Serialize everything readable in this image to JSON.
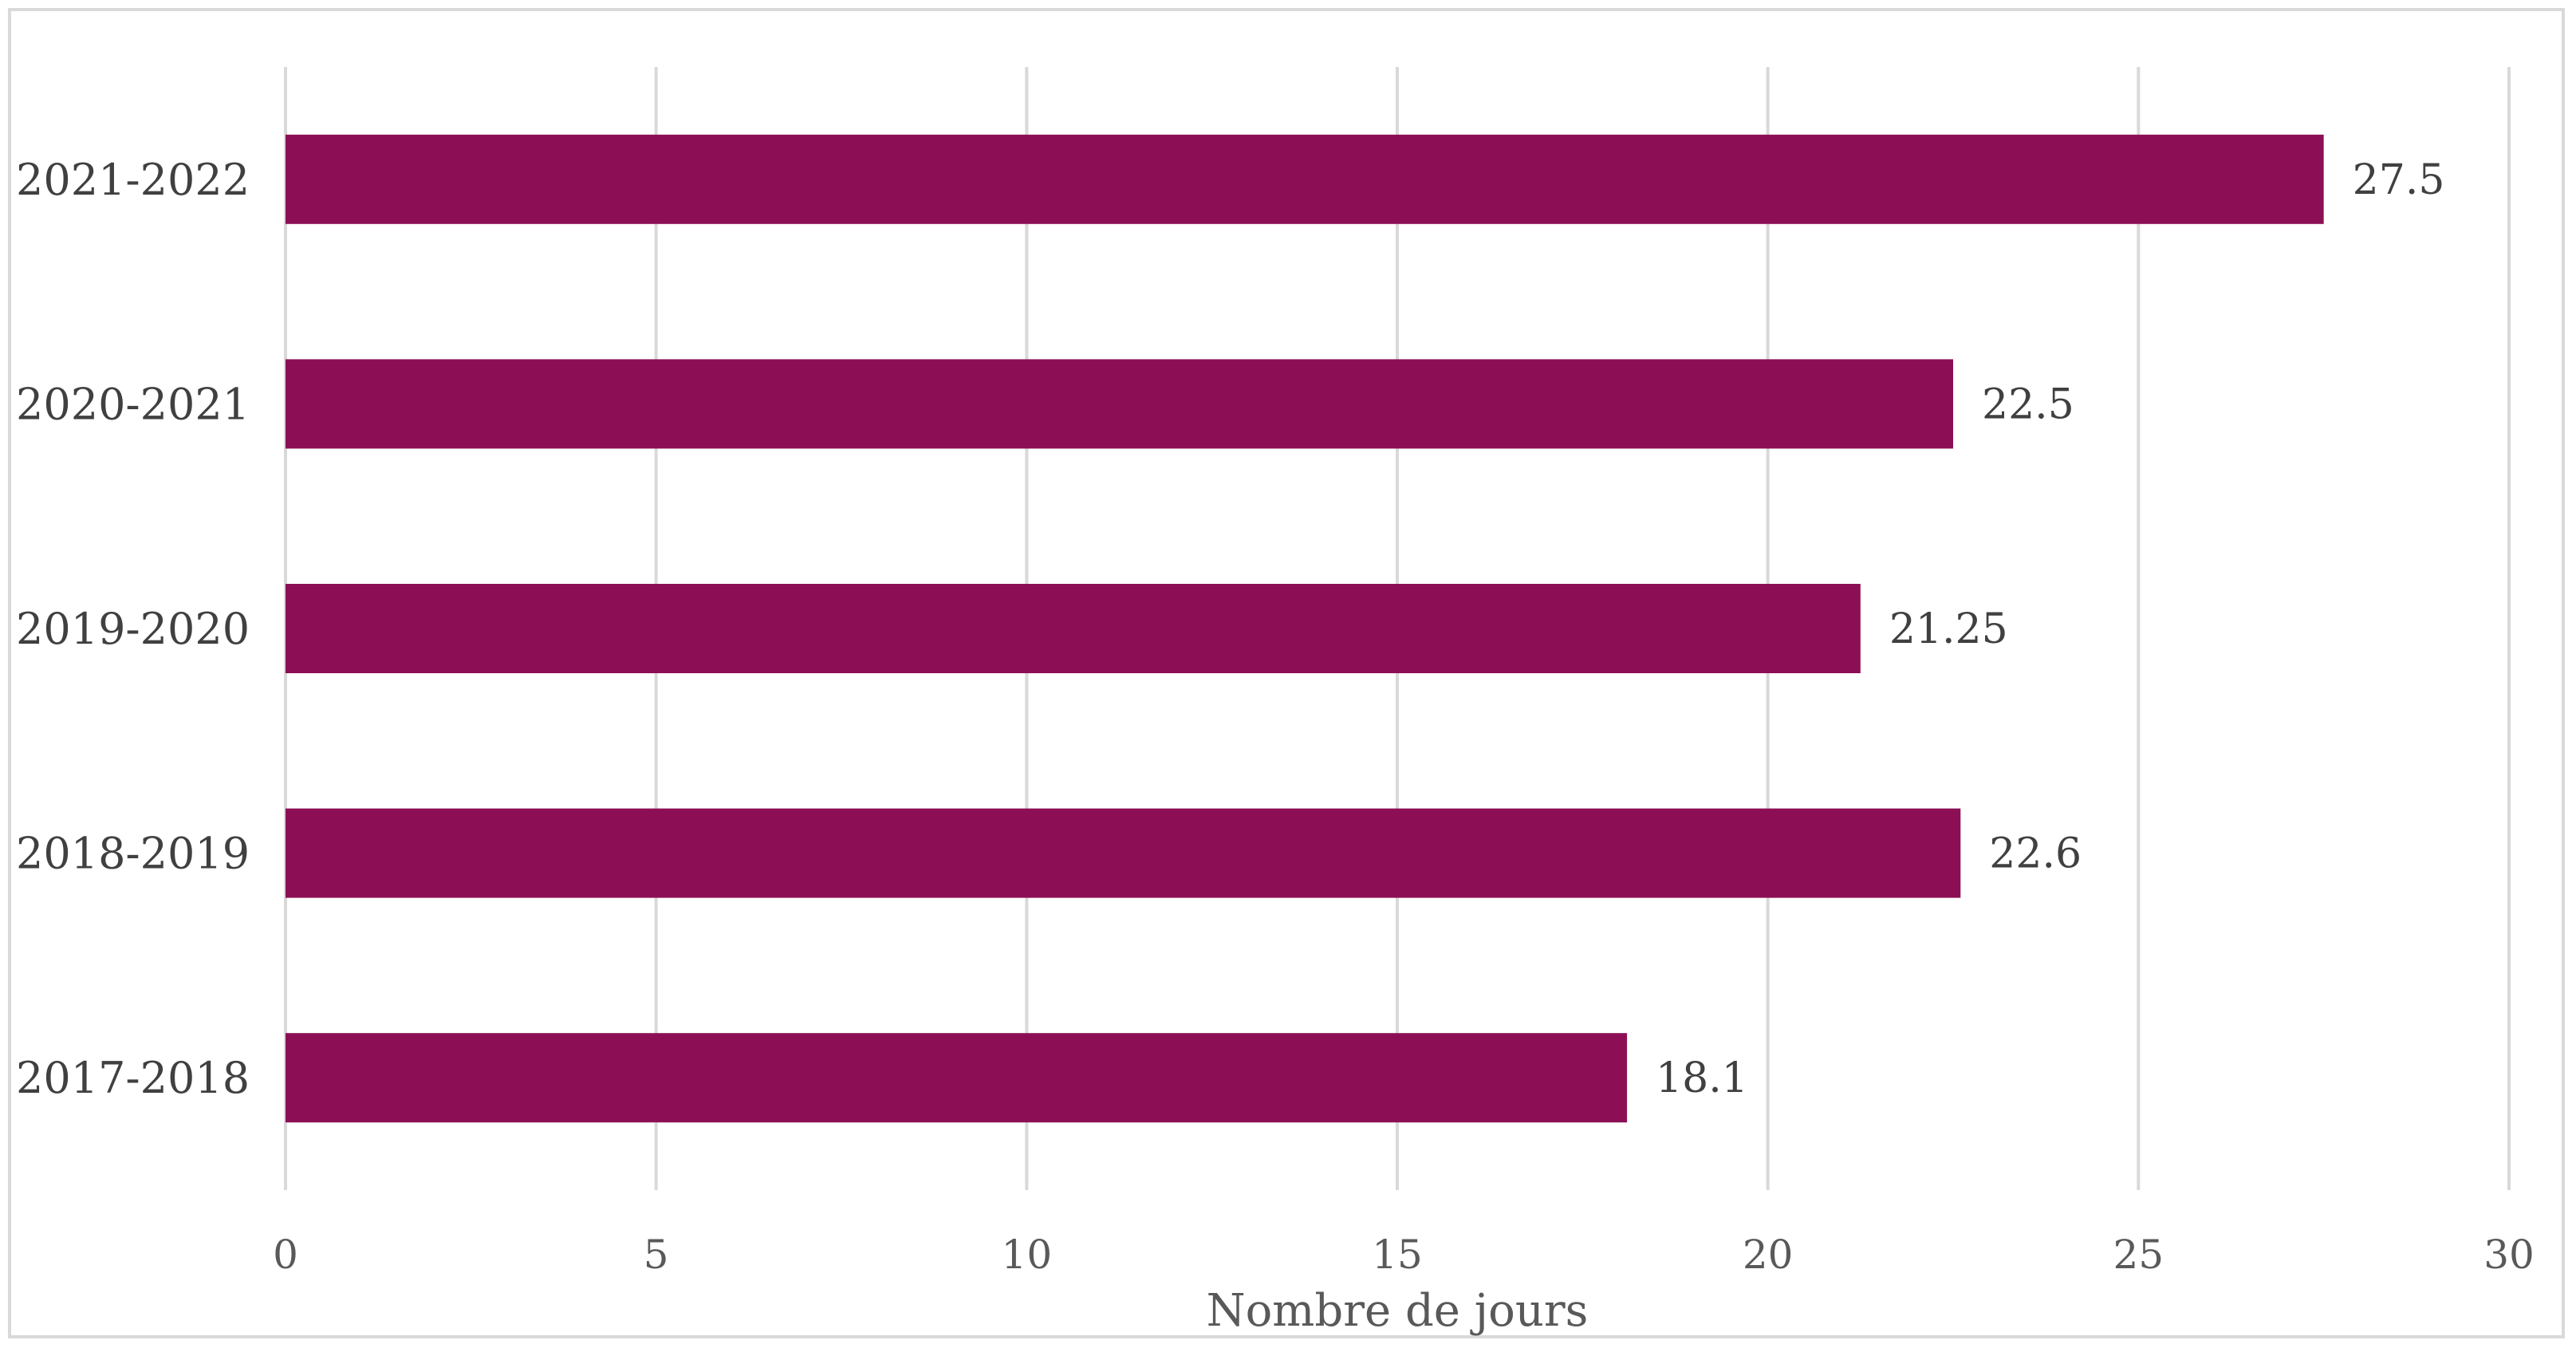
{
  "chart_data": {
    "type": "bar",
    "orientation": "horizontal",
    "title": "",
    "xlabel": "Nombre de jours",
    "ylabel": "",
    "xlim": [
      0,
      30
    ],
    "x_ticks": [
      0,
      5,
      10,
      15,
      20,
      25,
      30
    ],
    "grid": "vertical",
    "legend": "none",
    "categories": [
      "2021-2022",
      "2020-2021",
      "2019-2020",
      "2018-2019",
      "2017-2018"
    ],
    "values": [
      27.5,
      22.5,
      21.25,
      22.6,
      18.1
    ],
    "value_labels": [
      "27.5",
      "22.5",
      "21.25",
      "22.6",
      "18.1"
    ],
    "bar_color": "#8c0f55"
  }
}
